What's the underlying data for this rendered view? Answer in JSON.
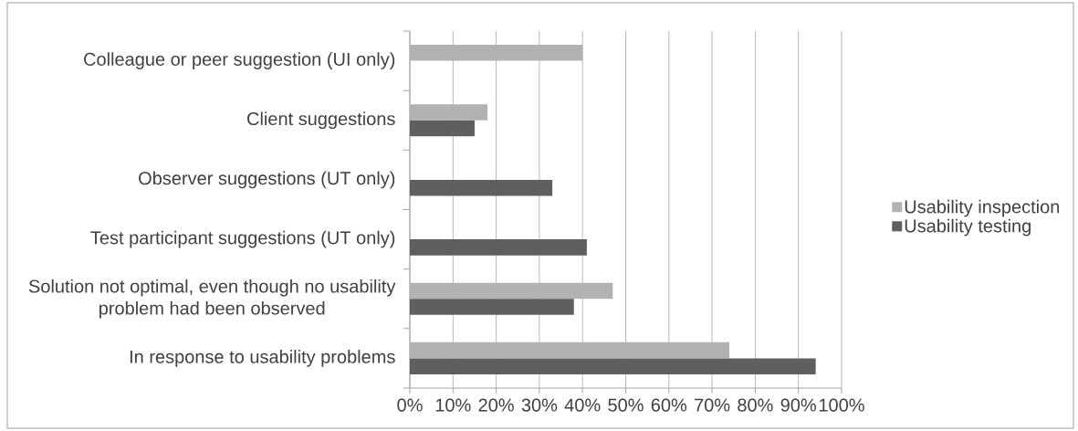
{
  "chart_data": {
    "type": "bar",
    "orientation": "horizontal",
    "categories": [
      "Colleague or peer suggestion (UI only)",
      "Client suggestions",
      "Observer suggestions (UT only)",
      "Test participant suggestions (UT only)",
      "Solution not optimal, even though no usability problem had been observed",
      "In response to usability problems"
    ],
    "series": [
      {
        "name": "Usability inspection",
        "color": "#b2b2b2",
        "values": [
          40,
          18,
          null,
          null,
          47,
          74
        ]
      },
      {
        "name": "Usability testing",
        "color": "#5f5f5f",
        "values": [
          null,
          15,
          33,
          41,
          38,
          94
        ]
      }
    ],
    "xlim": [
      0,
      100
    ],
    "xticks": [
      {
        "value": 0,
        "label": "0%"
      },
      {
        "value": 10,
        "label": "10%"
      },
      {
        "value": 20,
        "label": "20%"
      },
      {
        "value": 30,
        "label": "30%"
      },
      {
        "value": 40,
        "label": "40%"
      },
      {
        "value": 50,
        "label": "50%"
      },
      {
        "value": 60,
        "label": "60%"
      },
      {
        "value": 70,
        "label": "70%"
      },
      {
        "value": 80,
        "label": "80%"
      },
      {
        "value": 90,
        "label": "90%"
      },
      {
        "value": 100,
        "label": "100%"
      }
    ],
    "grid": "x",
    "legend": "right"
  }
}
